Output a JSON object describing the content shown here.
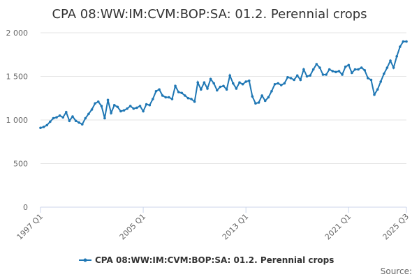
{
  "chart_data": {
    "type": "line",
    "title": "CPA 08:WW:IM:CVM:BOP:SA: 01.2. Perennial crops",
    "xlabel": "",
    "ylabel": "",
    "ylim": [
      0,
      2000
    ],
    "yticks": [
      0,
      500,
      1000,
      1500,
      2000
    ],
    "ytick_labels": [
      "0",
      "500",
      "1 000",
      "1 500",
      "2 000"
    ],
    "xtick_labels": [
      "1997 Q1",
      "2005 Q1",
      "2013 Q1",
      "2021 Q1",
      "2025 Q3"
    ],
    "xtick_indices": [
      0,
      32,
      64,
      96,
      114
    ],
    "grid": true,
    "legend_position": "bottom",
    "line_color": "#1f77b4",
    "series": [
      {
        "name": "CPA 08:WW:IM:CVM:BOP:SA: 01.2. Perennial crops",
        "values": [
          910,
          920,
          940,
          980,
          1020,
          1030,
          1050,
          1030,
          1090,
          990,
          1040,
          990,
          970,
          950,
          1020,
          1070,
          1120,
          1190,
          1210,
          1160,
          1020,
          1230,
          1080,
          1170,
          1150,
          1100,
          1110,
          1130,
          1160,
          1130,
          1140,
          1160,
          1100,
          1180,
          1170,
          1240,
          1330,
          1350,
          1280,
          1260,
          1260,
          1240,
          1390,
          1320,
          1310,
          1280,
          1250,
          1240,
          1210,
          1430,
          1350,
          1430,
          1360,
          1470,
          1420,
          1340,
          1380,
          1390,
          1350,
          1510,
          1420,
          1360,
          1430,
          1410,
          1440,
          1450,
          1270,
          1190,
          1200,
          1280,
          1220,
          1260,
          1330,
          1410,
          1420,
          1400,
          1420,
          1490,
          1480,
          1460,
          1510,
          1460,
          1580,
          1500,
          1510,
          1580,
          1640,
          1600,
          1520,
          1520,
          1580,
          1560,
          1550,
          1560,
          1520,
          1610,
          1630,
          1540,
          1580,
          1580,
          1600,
          1570,
          1480,
          1460,
          1290,
          1350,
          1440,
          1530,
          1600,
          1680,
          1600,
          1730,
          1840,
          1900,
          1900
        ]
      }
    ]
  },
  "credit": "Source:"
}
